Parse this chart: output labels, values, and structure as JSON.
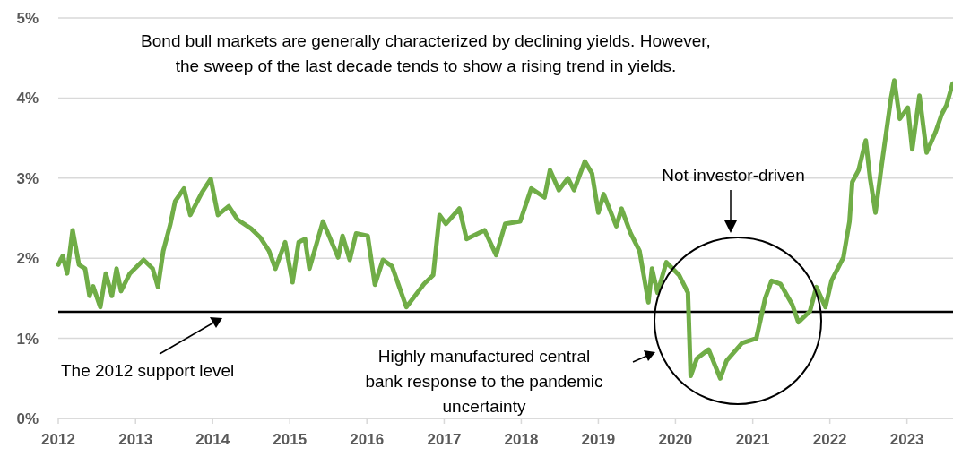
{
  "chart_data": {
    "type": "line",
    "x": [
      "2012-01-01",
      "2012-01-22",
      "2012-02-12",
      "2012-03-09",
      "2012-04-08",
      "2012-05-07",
      "2012-05-28",
      "2012-06-14",
      "2012-07-18",
      "2012-08-13",
      "2012-09-11",
      "2012-10-03",
      "2012-10-24",
      "2012-12-05",
      "2013-02-08",
      "2013-03-23",
      "2013-04-17",
      "2013-05-12",
      "2013-06-15",
      "2013-07-07",
      "2013-08-18",
      "2013-09-17",
      "2013-11-11",
      "2013-12-23",
      "2014-01-26",
      "2014-03-18",
      "2014-04-30",
      "2014-07-02",
      "2014-08-14",
      "2014-09-25",
      "2014-10-25",
      "2014-12-10",
      "2015-01-14",
      "2015-02-12",
      "2015-03-14",
      "2015-04-04",
      "2015-06-07",
      "2015-08-18",
      "2015-09-08",
      "2015-10-12",
      "2015-11-11",
      "2016-01-05",
      "2016-02-08",
      "2016-03-17",
      "2016-04-29",
      "2016-07-06",
      "2016-09-28",
      "2016-11-10",
      "2016-12-10",
      "2017-01-09",
      "2017-03-14",
      "2017-04-17",
      "2017-07-11",
      "2017-09-04",
      "2017-10-17",
      "2017-12-27",
      "2018-02-17",
      "2018-04-21",
      "2018-05-17",
      "2018-06-28",
      "2018-08-10",
      "2018-09-08",
      "2018-10-29",
      "2018-12-02",
      "2019-01-01",
      "2019-01-26",
      "2019-03-27",
      "2019-04-21",
      "2019-06-03",
      "2019-07-15",
      "2019-08-26",
      "2019-09-12",
      "2019-10-08",
      "2019-11-19",
      "2020-01-18",
      "2020-02-29",
      "2020-03-13",
      "2020-04-12",
      "2020-06-06",
      "2020-07-31",
      "2020-08-30",
      "2020-11-11",
      "2021-01-18",
      "2021-03-01",
      "2021-03-31",
      "2021-05-12",
      "2021-07-07",
      "2021-08-05",
      "2021-09-29",
      "2021-10-29",
      "2021-12-11",
      "2022-01-09",
      "2022-03-06",
      "2022-04-04",
      "2022-04-17",
      "2022-05-17",
      "2022-06-20",
      "2022-07-11",
      "2022-08-05",
      "2022-09-04",
      "2022-10-17",
      "2022-11-02",
      "2022-11-28",
      "2023-01-05",
      "2023-01-26",
      "2023-03-01",
      "2023-04-04",
      "2023-05-17",
      "2023-06-15",
      "2023-07-07",
      "2023-08-05"
    ],
    "series": [
      {
        "color": "#70ad47",
        "values": [
          1.92,
          2.03,
          1.81,
          2.35,
          1.92,
          1.87,
          1.53,
          1.65,
          1.39,
          1.81,
          1.53,
          1.87,
          1.59,
          1.81,
          1.98,
          1.87,
          1.64,
          2.09,
          2.43,
          2.71,
          2.87,
          2.54,
          2.82,
          2.99,
          2.54,
          2.65,
          2.48,
          2.37,
          2.26,
          2.09,
          1.87,
          2.2,
          1.7,
          2.2,
          2.24,
          1.87,
          2.46,
          2.01,
          2.28,
          1.98,
          2.31,
          2.28,
          1.67,
          1.98,
          1.9,
          1.39,
          1.68,
          1.79,
          2.54,
          2.43,
          2.62,
          2.24,
          2.35,
          2.04,
          2.43,
          2.46,
          2.87,
          2.76,
          3.1,
          2.85,
          3.0,
          2.85,
          3.21,
          3.06,
          2.57,
          2.8,
          2.4,
          2.62,
          2.31,
          2.09,
          1.45,
          1.87,
          1.57,
          1.95,
          1.79,
          1.57,
          0.53,
          0.75,
          0.86,
          0.5,
          0.72,
          0.94,
          1.0,
          1.5,
          1.72,
          1.68,
          1.42,
          1.2,
          1.34,
          1.64,
          1.39,
          1.72,
          2.01,
          2.46,
          2.95,
          3.1,
          3.47,
          2.99,
          2.57,
          3.18,
          3.99,
          4.22,
          3.74,
          3.88,
          3.36,
          4.03,
          3.32,
          3.58,
          3.8,
          3.91,
          4.18
        ]
      }
    ],
    "xlim": [
      "2012-01-01",
      "2023-08-07"
    ],
    "xticks": [
      "2012",
      "2013",
      "2014",
      "2015",
      "2016",
      "2017",
      "2018",
      "2019",
      "2020",
      "2021",
      "2022",
      "2023"
    ],
    "ylim": [
      0,
      5
    ],
    "yticks": [
      {
        "value": 0,
        "label": "0%"
      },
      {
        "value": 1,
        "label": "1%"
      },
      {
        "value": 2,
        "label": "2%"
      },
      {
        "value": 3,
        "label": "3%"
      },
      {
        "value": 4,
        "label": "4%"
      },
      {
        "value": 5,
        "label": "5%"
      }
    ],
    "grid": "y",
    "marker": "none",
    "line_style": "solid",
    "ref_lines": [
      {
        "axis": "y",
        "value": 1.33,
        "color": "#000000"
      }
    ],
    "annotations": [
      "Bond bull markets are generally characterized by declining yields. However,\nthe sweep of the last decade tends to show a rising trend in yields.",
      "Not investor-driven",
      "Highly manufactured central\nbank response to the pandemic\nuncertainty",
      "The 2012 support level"
    ]
  }
}
